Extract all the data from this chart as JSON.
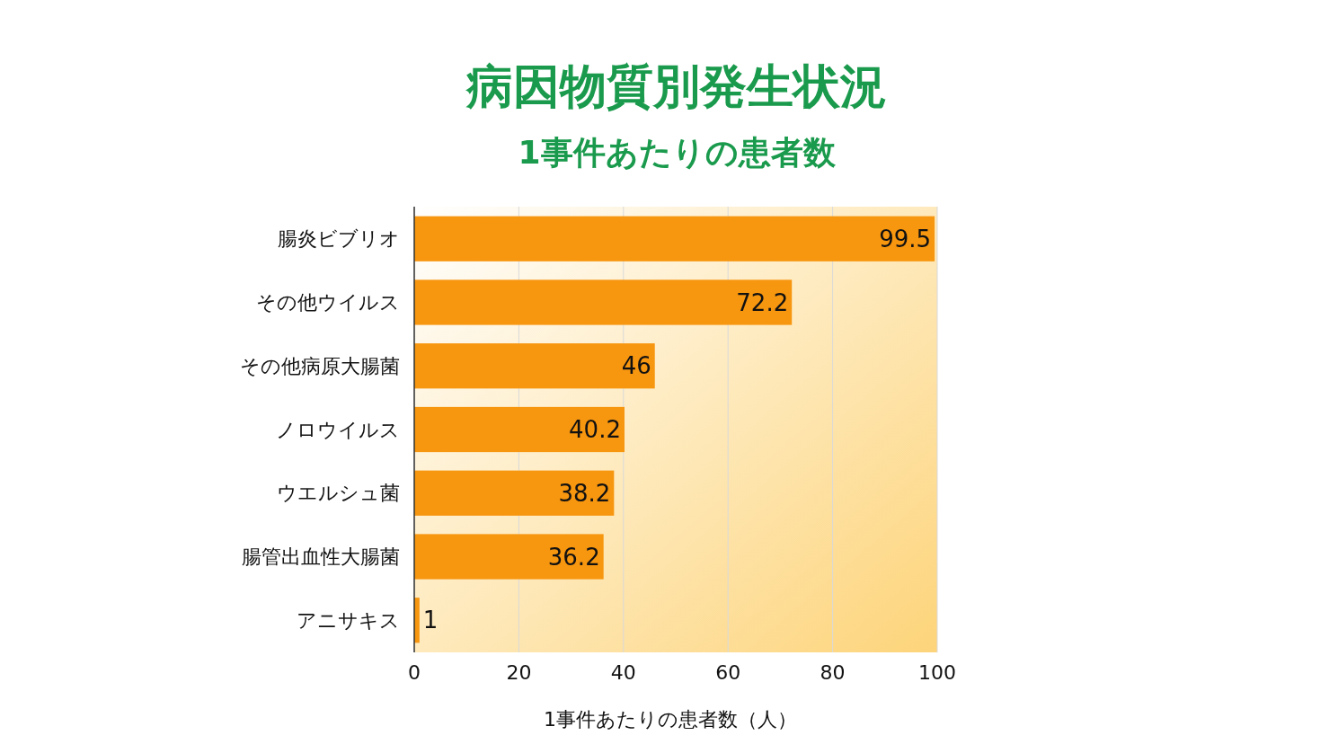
{
  "chart_data": {
    "type": "bar",
    "orientation": "horizontal",
    "title": "病因物質別発生状況",
    "subtitle": "1事件あたりの患者数",
    "xlabel": "1事件あたりの患者数（人）",
    "categories": [
      "腸炎ビブリオ",
      "その他ウイルス",
      "その他病原大腸菌",
      "ノロウイルス",
      "ウエルシュ菌",
      "腸管出血性大腸菌",
      "アニサキス"
    ],
    "values": [
      99.5,
      72.2,
      46,
      40.2,
      38.2,
      36.2,
      1
    ],
    "color": "#f7960f",
    "xlim": [
      0,
      100
    ],
    "xticks": [
      0,
      20,
      40,
      60,
      80,
      100
    ],
    "grid": "x",
    "data_labels": true
  }
}
